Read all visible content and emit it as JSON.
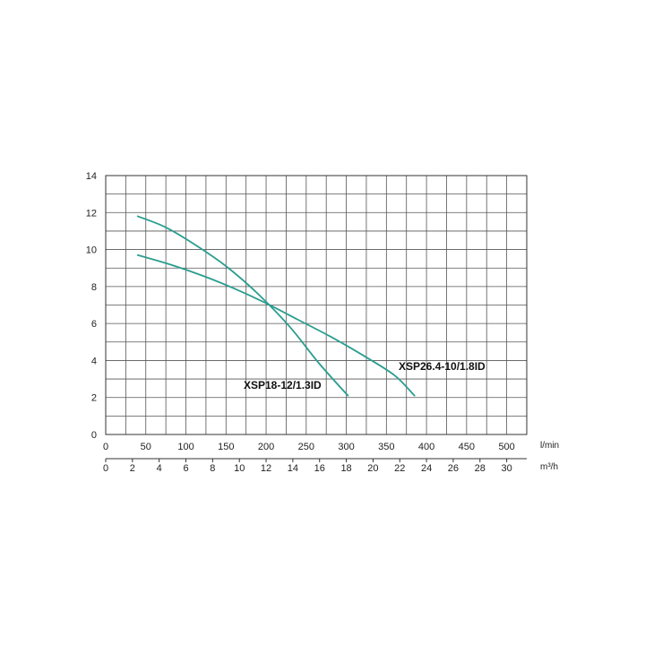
{
  "chart_data": {
    "type": "line",
    "xlabel": "l/min",
    "x2label": "m³/h",
    "xlim": [
      0,
      525
    ],
    "ylim": [
      0,
      14
    ],
    "grid": true,
    "yticks": [
      "0",
      "2",
      "4",
      "6",
      "8",
      "10",
      "12",
      "14"
    ],
    "xticks": [
      "0",
      "50",
      "100",
      "150",
      "200",
      "250",
      "300",
      "350",
      "400",
      "450",
      "500"
    ],
    "x2ticks": [
      "0",
      "2",
      "4",
      "6",
      "8",
      "10",
      "12",
      "14",
      "16",
      "18",
      "20",
      "22",
      "24",
      "26",
      "28",
      "30"
    ],
    "series": [
      {
        "name": "XSP18-12/1.3ID",
        "color": "#2a9d8f",
        "x": [
          40,
          75,
          110,
          150,
          190,
          230,
          265,
          302
        ],
        "y": [
          11.8,
          11.2,
          10.3,
          9.1,
          7.6,
          5.8,
          3.9,
          2.1
        ]
      },
      {
        "name": "XSP26.4-10/1.8ID",
        "color": "#2a9d8f",
        "x": [
          40,
          80,
          120,
          160,
          200,
          240,
          280,
          320,
          360,
          385
        ],
        "y": [
          9.7,
          9.2,
          8.6,
          7.9,
          7.1,
          6.2,
          5.3,
          4.3,
          3.2,
          2.1
        ]
      }
    ]
  }
}
